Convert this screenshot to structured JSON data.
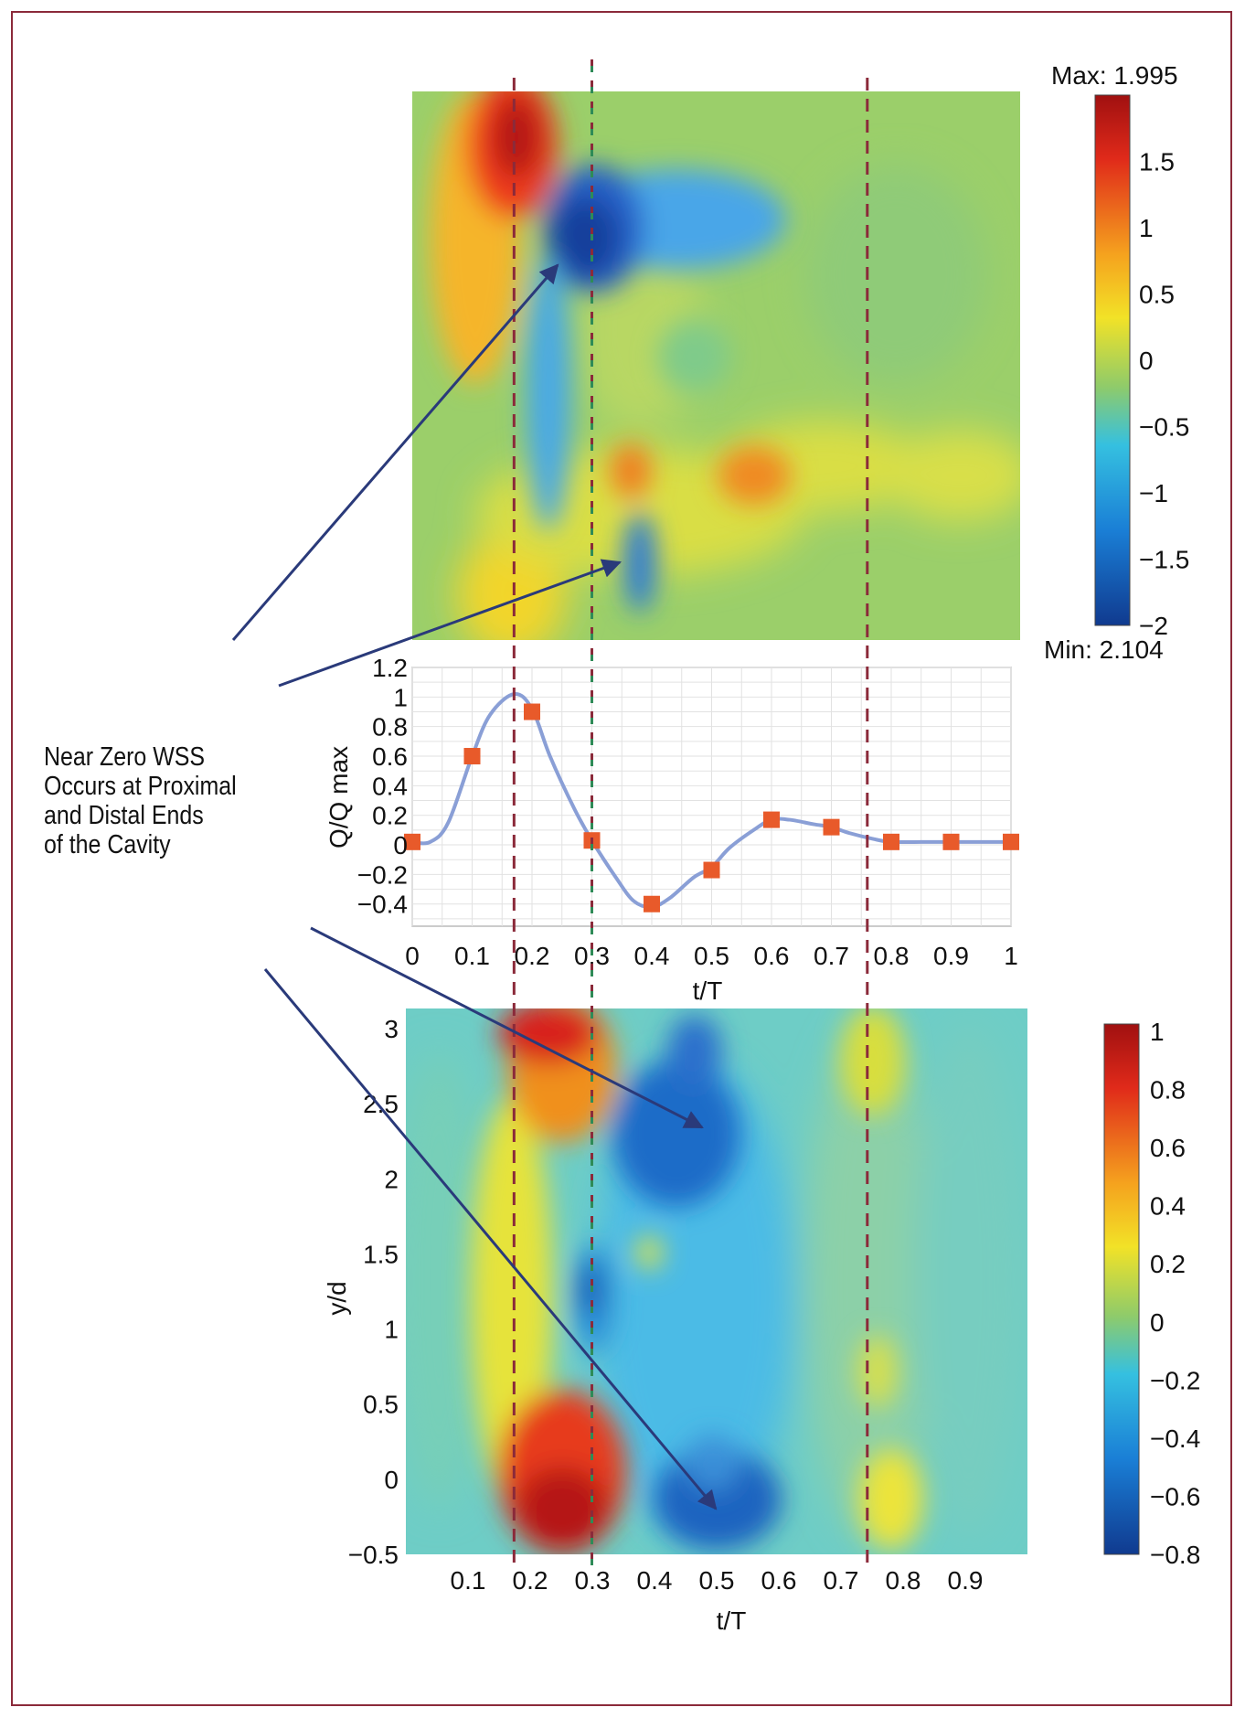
{
  "annotation": {
    "lines": [
      "Near Zero WSS",
      "Occurs at Proximal",
      "and Distal Ends",
      "of the Cavity"
    ]
  },
  "colors": {
    "frame": "#8b2a3a",
    "dashed_lines": "#8b2a3a",
    "dashed_green": "#2e8b57",
    "arrows": "#2a3a7a",
    "flow_line": "#8a9fd6",
    "flow_markers": "#e85a2a"
  },
  "chart_data": [
    {
      "id": "top-heatmap",
      "type": "heatmap",
      "title": "",
      "colorbar": {
        "max_label": "Max: 1.995",
        "min_label": "Min: 2.104",
        "range": [
          -2,
          2
        ],
        "ticks": [
          1.5,
          1,
          0.5,
          0,
          -0.5,
          -1,
          -1.5,
          -2
        ],
        "tick_labels": [
          "1.5",
          "1",
          "0.5",
          "0",
          "−0.5",
          "−1",
          "−1.5",
          "−2"
        ]
      },
      "xlim": [
        0,
        1
      ],
      "ylim": [
        -0.5,
        3.1
      ]
    },
    {
      "id": "flow-waveform",
      "type": "line",
      "xlabel": "t/T",
      "ylabel": "Q/Q max",
      "xlim": [
        0,
        1
      ],
      "ylim": [
        -0.55,
        1.2
      ],
      "xticks": [
        0,
        0.1,
        0.2,
        0.3,
        0.4,
        0.5,
        0.6,
        0.7,
        0.8,
        0.9,
        1
      ],
      "xtick_labels": [
        "0",
        "0.1",
        "0.2",
        "0.3",
        "0.4",
        "0.5",
        "0.6",
        "0.7",
        "0.8",
        "0.9",
        "1"
      ],
      "yticks": [
        1.2,
        1,
        0.8,
        0.6,
        0.4,
        0.2,
        0,
        -0.2,
        -0.4
      ],
      "ytick_labels": [
        "1.2",
        "1",
        "0.8",
        "0.6",
        "0.4",
        "0.2",
        "0",
        "−0.2",
        "−0.4"
      ],
      "grid": true,
      "curve": {
        "x": [
          0,
          0.03,
          0.06,
          0.1,
          0.13,
          0.17,
          0.2,
          0.23,
          0.27,
          0.3,
          0.34,
          0.37,
          0.4,
          0.43,
          0.47,
          0.5,
          0.53,
          0.57,
          0.6,
          0.63,
          0.67,
          0.7,
          0.73,
          0.77,
          0.8,
          0.85,
          0.9,
          0.95,
          1
        ],
        "y": [
          0.02,
          0.02,
          0.15,
          0.6,
          0.88,
          1.02,
          0.92,
          0.6,
          0.25,
          0.03,
          -0.22,
          -0.38,
          -0.42,
          -0.36,
          -0.22,
          -0.15,
          -0.02,
          0.1,
          0.17,
          0.17,
          0.14,
          0.12,
          0.08,
          0.04,
          0.02,
          0.02,
          0.02,
          0.02,
          0.02
        ]
      },
      "points": {
        "x": [
          0,
          0.1,
          0.2,
          0.3,
          0.4,
          0.5,
          0.6,
          0.7,
          0.8,
          0.9,
          1
        ],
        "y": [
          0.02,
          0.6,
          0.9,
          0.03,
          -0.4,
          -0.17,
          0.17,
          0.12,
          0.02,
          0.02,
          0.02
        ]
      }
    },
    {
      "id": "bottom-heatmap",
      "type": "heatmap",
      "xlabel": "t/T",
      "ylabel": "y/d",
      "xlim": [
        0,
        1
      ],
      "ylim": [
        -0.5,
        3.1
      ],
      "xticks": [
        0.1,
        0.2,
        0.3,
        0.4,
        0.5,
        0.6,
        0.7,
        0.8,
        0.9
      ],
      "xtick_labels": [
        "0.1",
        "0.2",
        "0.3",
        "0.4",
        "0.5",
        "0.6",
        "0.7",
        "0.8",
        "0.9"
      ],
      "yticks": [
        3,
        2.5,
        2,
        1.5,
        1,
        0.5,
        0,
        -0.5
      ],
      "ytick_labels": [
        "3",
        "2.5",
        "2",
        "1.5",
        "1",
        "0.5",
        "0",
        "−0.5"
      ],
      "colorbar": {
        "range": [
          -0.8,
          1
        ],
        "ticks": [
          1,
          0.8,
          0.6,
          0.4,
          0.2,
          0,
          -0.2,
          -0.4,
          -0.6,
          -0.8
        ],
        "tick_labels": [
          "1",
          "0.8",
          "0.6",
          "0.4",
          "0.2",
          "0",
          "−0.2",
          "−0.4",
          "−0.6",
          "−0.8"
        ]
      }
    }
  ],
  "marker_times": {
    "dashed_red": [
      0.17,
      0.76
    ],
    "dashed_green": [
      0.3
    ]
  }
}
